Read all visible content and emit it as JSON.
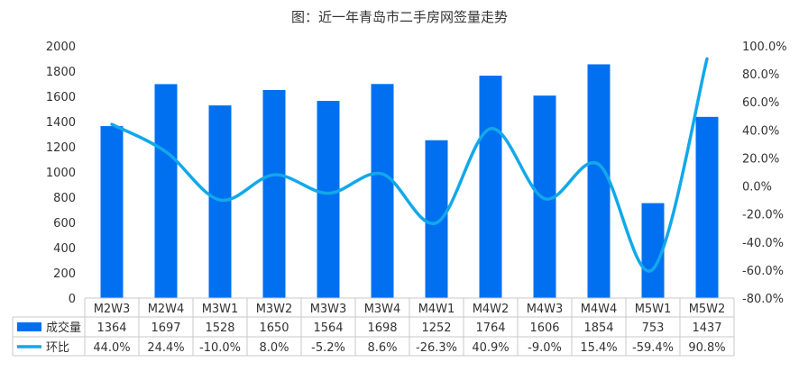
{
  "chart_data": {
    "type": "bar",
    "title": "图：近一年青岛市二手房网签量走势",
    "categories": [
      "M2W3",
      "M2W4",
      "M3W1",
      "M3W2",
      "M3W3",
      "M3W4",
      "M4W1",
      "M4W2",
      "M4W3",
      "M4W4",
      "M5W1",
      "M5W2"
    ],
    "series": [
      {
        "name": "成交量",
        "type": "bar",
        "axis": "left",
        "values": [
          1364,
          1697,
          1528,
          1650,
          1564,
          1698,
          1252,
          1764,
          1606,
          1854,
          753,
          1437
        ],
        "labels": [
          "1364",
          "1697",
          "1528",
          "1650",
          "1564",
          "1698",
          "1252",
          "1764",
          "1606",
          "1854",
          "753",
          "1437"
        ]
      },
      {
        "name": "环比",
        "type": "line",
        "axis": "right",
        "values": [
          44.0,
          24.4,
          -10.0,
          8.0,
          -5.2,
          8.6,
          -26.3,
          40.9,
          -9.0,
          15.4,
          -59.4,
          90.8
        ],
        "labels": [
          "44.0%",
          "24.4%",
          "-10.0%",
          "8.0%",
          "-5.2%",
          "8.6%",
          "-26.3%",
          "40.9%",
          "-9.0%",
          "15.4%",
          "-59.4%",
          "90.8%"
        ]
      }
    ],
    "y_left": {
      "lim": [
        0,
        2000
      ],
      "ticks": [
        "0",
        "200",
        "400",
        "600",
        "800",
        "1000",
        "1200",
        "1400",
        "1600",
        "1800",
        "2000"
      ]
    },
    "y_right": {
      "lim": [
        -80,
        100
      ],
      "ticks": [
        "-80.0%",
        "-60.0%",
        "-40.0%",
        "-20.0%",
        "0.0%",
        "20.0%",
        "40.0%",
        "60.0%",
        "80.0%",
        "100.0%"
      ]
    },
    "grid": false,
    "legend": "data-table",
    "colors": {
      "bar": "#0070f0",
      "line": "#12a8ea"
    }
  }
}
